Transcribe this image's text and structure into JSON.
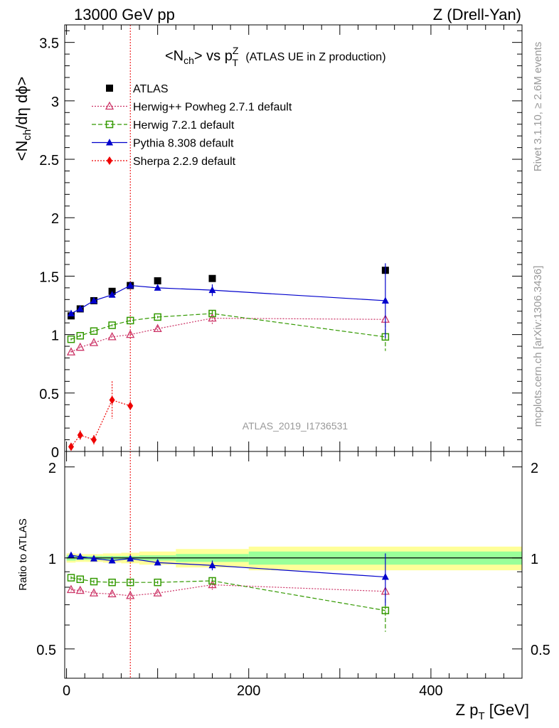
{
  "header": {
    "left": "13000 GeV pp",
    "right": "Z (Drell-Yan)"
  },
  "title": {
    "prefix": "<N",
    "ch": "ch",
    "mid": "> vs p",
    "sup": "Z",
    "sub": "T",
    "suffix": " (ATLAS UE in Z production)"
  },
  "side_labels": {
    "rivet": "Rivet 3.1.10, ≥ 2.6M events",
    "mcplots": "mcplots.cern.ch [arXiv:1306.3436]"
  },
  "watermark": "ATLAS_2019_I1736531",
  "ylabel_main": {
    "a": "<N",
    "b": "ch",
    "c": "/dη dϕ>"
  },
  "ylabel_ratio": "Ratio to ATLAS",
  "xlabel": {
    "a": "Z p",
    "b": "T",
    "c": " [GeV]"
  },
  "colors": {
    "atlas": "#000000",
    "herwigpp": "#cc3366",
    "herwig7": "#339900",
    "pythia": "#0000cc",
    "sherpa": "#ee0000",
    "band_inner": "#99ff99",
    "band_outer": "#ffff99",
    "cutline": "#ee0000"
  },
  "chart_data": [
    {
      "type": "scatter",
      "panel": "main",
      "xlim": [
        -2,
        500
      ],
      "ylim": [
        0,
        3.65
      ],
      "ymajor_ticks": [
        0,
        0.5,
        1,
        1.5,
        2,
        2.5,
        3,
        3.5
      ],
      "ymajor_tick_labels": [
        "0",
        "0.5",
        "1",
        "1.5",
        "2",
        "2.5",
        "3",
        "3.5"
      ],
      "vertical_line_x": 70,
      "legend_position": "top-left",
      "series": [
        {
          "key": "atlas",
          "name": "ATLAS",
          "marker": "filled-square",
          "line": "none",
          "x": [
            5,
            15,
            30,
            50,
            70,
            100,
            160,
            350
          ],
          "y": [
            1.16,
            1.22,
            1.29,
            1.37,
            1.42,
            1.46,
            1.48,
            1.55
          ],
          "err": [
            0.01,
            0.01,
            0.01,
            0.01,
            0.01,
            0.01,
            0.01,
            0.02
          ]
        },
        {
          "key": "herwigpp",
          "name": "Herwig++ Powheg 2.7.1 default",
          "marker": "open-triangle",
          "line": "dotted",
          "x": [
            5,
            15,
            30,
            50,
            70,
            100,
            160,
            350
          ],
          "y": [
            0.85,
            0.89,
            0.93,
            0.98,
            1.0,
            1.05,
            1.14,
            1.13
          ],
          "err": [
            0.01,
            0.01,
            0.01,
            0.01,
            0.01,
            0.02,
            0.06,
            0
          ]
        },
        {
          "key": "herwig7",
          "name": "Herwig 7.2.1 default",
          "marker": "open-square",
          "line": "dashed",
          "x": [
            5,
            15,
            30,
            50,
            70,
            100,
            160,
            350
          ],
          "y": [
            0.96,
            0.99,
            1.03,
            1.08,
            1.12,
            1.15,
            1.18,
            0.98
          ],
          "err": [
            0.01,
            0.01,
            0.01,
            0.01,
            0.01,
            0.01,
            0.03,
            0.12
          ]
        },
        {
          "key": "pythia",
          "name": "Pythia 8.308 default",
          "marker": "filled-triangle",
          "line": "solid",
          "x": [
            5,
            15,
            30,
            50,
            70,
            100,
            160,
            350
          ],
          "y": [
            1.18,
            1.22,
            1.29,
            1.34,
            1.42,
            1.4,
            1.38,
            1.29
          ],
          "err": [
            0.01,
            0.01,
            0.01,
            0.01,
            0.01,
            0.02,
            0.05,
            0.32
          ]
        },
        {
          "key": "sherpa",
          "name": "Sherpa 2.2.9 default",
          "marker": "filled-diamond",
          "line": "dotted",
          "x": [
            5,
            15,
            30,
            50,
            70
          ],
          "y": [
            0.04,
            0.14,
            0.1,
            0.44,
            0.39
          ],
          "err": [
            0.03,
            0.04,
            0.04,
            0.16,
            0.03
          ]
        }
      ]
    },
    {
      "type": "scatter",
      "panel": "ratio",
      "xlim": [
        -2,
        500
      ],
      "ylim": [
        0.4,
        2.25
      ],
      "yscale": "log",
      "ymajor_ticks": [
        0.5,
        1,
        2
      ],
      "ymajor_tick_labels": [
        "0.5",
        "1",
        "2"
      ],
      "xmajor_ticks": [
        0,
        200,
        400
      ],
      "xmajor_tick_labels": [
        "0",
        "200",
        "400"
      ],
      "reference_line": 1,
      "band": {
        "edges": [
          0,
          10,
          20,
          40,
          60,
          80,
          120,
          200,
          500
        ],
        "inner": [
          0.02,
          0.015,
          0.015,
          0.015,
          0.015,
          0.02,
          0.03,
          0.05
        ],
        "outer": [
          0.035,
          0.03,
          0.03,
          0.035,
          0.04,
          0.05,
          0.07,
          0.09
        ]
      },
      "series": [
        {
          "key": "herwigpp",
          "name": "Herwig++ Powheg 2.7.1 default",
          "marker": "open-triangle",
          "line": "dotted",
          "x": [
            5,
            15,
            30,
            50,
            70,
            100,
            160,
            350
          ],
          "y": [
            0.785,
            0.78,
            0.765,
            0.76,
            0.75,
            0.765,
            0.815,
            0.775
          ],
          "err": [
            0.01,
            0.01,
            0.01,
            0.01,
            0.01,
            0.01,
            0.03,
            0
          ]
        },
        {
          "key": "herwig7",
          "name": "Herwig 7.2.1 default",
          "marker": "open-square",
          "line": "dashed",
          "x": [
            5,
            15,
            30,
            50,
            70,
            100,
            160,
            350
          ],
          "y": [
            0.86,
            0.85,
            0.835,
            0.83,
            0.83,
            0.83,
            0.84,
            0.67
          ],
          "err": [
            0.01,
            0.01,
            0.01,
            0.01,
            0.01,
            0.01,
            0.02,
            0.1
          ]
        },
        {
          "key": "pythia",
          "name": "Pythia 8.308 default",
          "marker": "filled-triangle",
          "line": "solid",
          "x": [
            5,
            15,
            30,
            50,
            70,
            100,
            160,
            350
          ],
          "y": [
            1.02,
            1.01,
            0.995,
            0.98,
            0.995,
            0.965,
            0.945,
            0.865
          ],
          "err": [
            0.01,
            0.01,
            0.01,
            0.01,
            0.01,
            0.015,
            0.035,
            0.17
          ]
        }
      ]
    }
  ]
}
